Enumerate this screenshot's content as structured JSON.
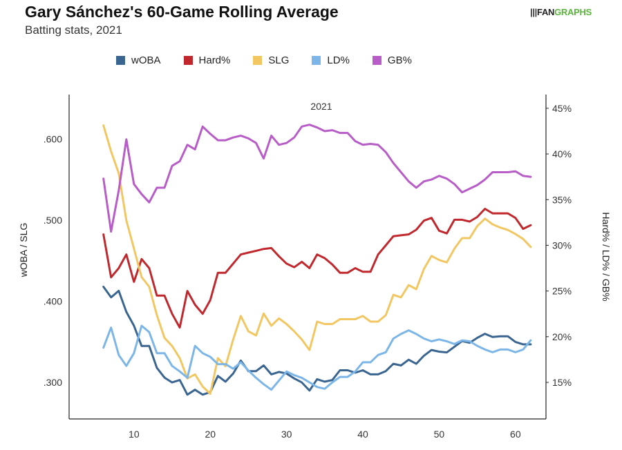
{
  "header": {
    "title": "Gary Sánchez's 60-Game Rolling Average",
    "subtitle": "Batting stats, 2021",
    "logo": {
      "mark": "|||",
      "fan": "FAN",
      "graphs": "GRAPHS"
    }
  },
  "chart_data": {
    "type": "line",
    "title": "Gary Sánchez's 60-Game Rolling Average",
    "subtitle": "Batting stats, 2021",
    "annotation": "2021",
    "xlabel": "",
    "ylabel_left": "wOBA / SLG",
    "ylabel_right": "Hard% / LD% / GB%",
    "xlim": [
      1.5,
      64
    ],
    "xticks": [
      10,
      20,
      30,
      40,
      50,
      60
    ],
    "ylim_left": [
      0.255,
      0.655
    ],
    "yticks_left": [
      ".300",
      ".400",
      ".500",
      ".600"
    ],
    "yticks_left_values": [
      0.3,
      0.4,
      0.5,
      0.6
    ],
    "ylim_right": [
      0.11,
      0.465
    ],
    "yticks_right": [
      "15%",
      "20%",
      "25%",
      "30%",
      "35%",
      "40%",
      "45%"
    ],
    "yticks_right_values": [
      0.15,
      0.2,
      0.25,
      0.3,
      0.35,
      0.4,
      0.45
    ],
    "legend_position": "top",
    "grid": false,
    "x": [
      6,
      7,
      8,
      9,
      10,
      11,
      12,
      13,
      14,
      15,
      16,
      17,
      18,
      19,
      20,
      21,
      22,
      23,
      24,
      25,
      26,
      27,
      28,
      29,
      30,
      31,
      32,
      33,
      34,
      35,
      36,
      37,
      38,
      39,
      40,
      41,
      42,
      43,
      44,
      45,
      46,
      47,
      48,
      49,
      50,
      51,
      52,
      53,
      54,
      55,
      56,
      57,
      58,
      59,
      60,
      61,
      62
    ],
    "series": [
      {
        "name": "wOBA",
        "axis": "left",
        "color": "#3a6591",
        "values": [
          0.418,
          0.405,
          0.413,
          0.387,
          0.37,
          0.345,
          0.345,
          0.318,
          0.306,
          0.3,
          0.303,
          0.285,
          0.291,
          0.285,
          0.288,
          0.308,
          0.301,
          0.311,
          0.327,
          0.314,
          0.314,
          0.321,
          0.31,
          0.313,
          0.311,
          0.305,
          0.3,
          0.29,
          0.304,
          0.301,
          0.303,
          0.315,
          0.315,
          0.312,
          0.315,
          0.31,
          0.31,
          0.314,
          0.323,
          0.321,
          0.328,
          0.323,
          0.333,
          0.34,
          0.338,
          0.337,
          0.344,
          0.351,
          0.349,
          0.355,
          0.36,
          0.356,
          0.357,
          0.357,
          0.35,
          0.347,
          0.347
        ]
      },
      {
        "name": "Hard%",
        "axis": "right",
        "color": "#c0282d",
        "values": [
          0.312,
          0.265,
          0.275,
          0.29,
          0.26,
          0.285,
          0.275,
          0.245,
          0.245,
          0.225,
          0.21,
          0.25,
          0.235,
          0.225,
          0.24,
          0.27,
          0.27,
          0.28,
          0.29,
          0.292,
          0.294,
          0.296,
          0.297,
          0.288,
          0.28,
          0.276,
          0.282,
          0.275,
          0.29,
          0.286,
          0.279,
          0.27,
          0.27,
          0.275,
          0.271,
          0.271,
          0.29,
          0.3,
          0.31,
          0.311,
          0.312,
          0.317,
          0.327,
          0.33,
          0.316,
          0.313,
          0.328,
          0.328,
          0.326,
          0.331,
          0.34,
          0.335,
          0.335,
          0.335,
          0.33,
          0.318,
          0.322
        ]
      },
      {
        "name": "SLG",
        "axis": "left",
        "color": "#f2c762",
        "values": [
          0.617,
          0.585,
          0.558,
          0.5,
          0.465,
          0.43,
          0.418,
          0.383,
          0.355,
          0.345,
          0.33,
          0.305,
          0.31,
          0.295,
          0.286,
          0.33,
          0.32,
          0.353,
          0.382,
          0.363,
          0.358,
          0.385,
          0.37,
          0.379,
          0.372,
          0.363,
          0.353,
          0.34,
          0.375,
          0.372,
          0.372,
          0.378,
          0.378,
          0.378,
          0.382,
          0.375,
          0.375,
          0.383,
          0.408,
          0.405,
          0.42,
          0.415,
          0.44,
          0.456,
          0.451,
          0.448,
          0.465,
          0.478,
          0.478,
          0.493,
          0.502,
          0.495,
          0.491,
          0.488,
          0.483,
          0.477,
          0.467
        ]
      },
      {
        "name": "LD%",
        "axis": "right",
        "color": "#7cb6e8",
        "values": [
          0.188,
          0.21,
          0.18,
          0.168,
          0.182,
          0.212,
          0.205,
          0.182,
          0.182,
          0.168,
          0.162,
          0.155,
          0.19,
          0.182,
          0.178,
          0.17,
          0.17,
          0.165,
          0.172,
          0.163,
          0.155,
          0.148,
          0.142,
          0.152,
          0.162,
          0.158,
          0.155,
          0.15,
          0.145,
          0.143,
          0.15,
          0.156,
          0.156,
          0.162,
          0.172,
          0.172,
          0.18,
          0.183,
          0.198,
          0.203,
          0.207,
          0.203,
          0.198,
          0.195,
          0.197,
          0.195,
          0.192,
          0.196,
          0.195,
          0.19,
          0.186,
          0.183,
          0.186,
          0.186,
          0.183,
          0.186,
          0.196
        ]
      },
      {
        "name": "GB%",
        "axis": "right",
        "color": "#b85cc8",
        "values": [
          0.373,
          0.315,
          0.36,
          0.416,
          0.367,
          0.356,
          0.347,
          0.363,
          0.363,
          0.387,
          0.392,
          0.41,
          0.405,
          0.43,
          0.422,
          0.415,
          0.415,
          0.418,
          0.42,
          0.417,
          0.412,
          0.395,
          0.42,
          0.41,
          0.412,
          0.418,
          0.43,
          0.432,
          0.429,
          0.425,
          0.426,
          0.423,
          0.423,
          0.414,
          0.41,
          0.411,
          0.41,
          0.402,
          0.39,
          0.38,
          0.37,
          0.363,
          0.37,
          0.372,
          0.376,
          0.373,
          0.367,
          0.358,
          0.362,
          0.366,
          0.372,
          0.38,
          0.38,
          0.38,
          0.381,
          0.376,
          0.375
        ]
      }
    ]
  }
}
